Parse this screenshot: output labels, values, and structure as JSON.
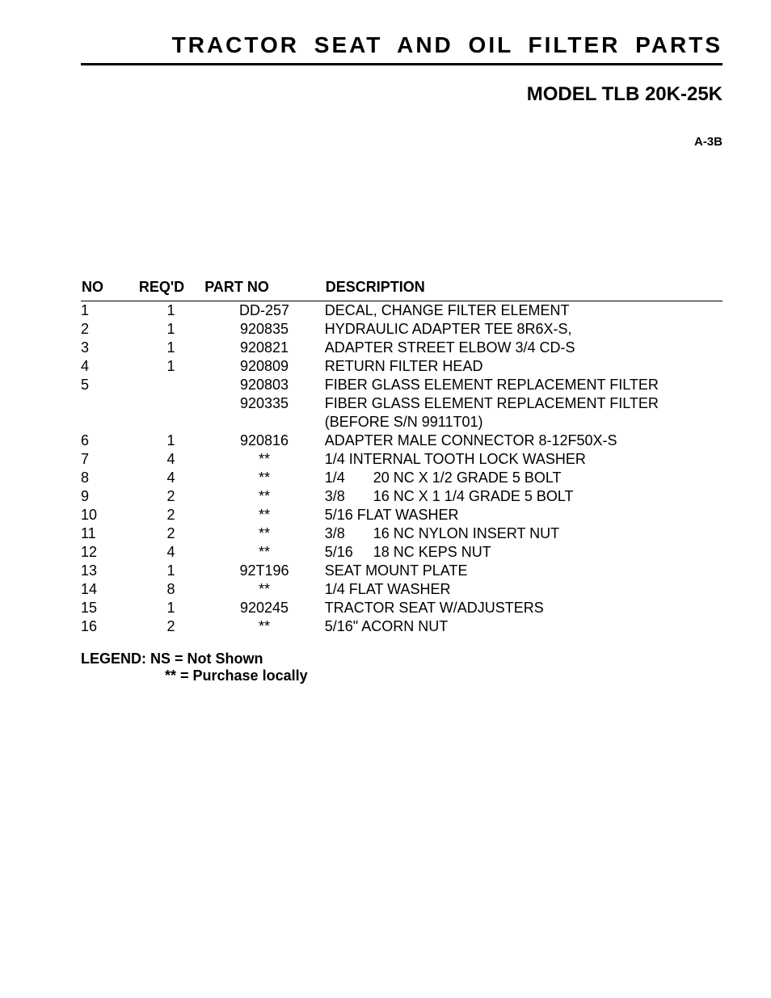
{
  "header": {
    "title": "TRACTOR SEAT AND OIL FILTER PARTS",
    "model": "MODEL TLB 20K-25K",
    "page_code": "A-3B"
  },
  "table": {
    "columns": {
      "no": "NO",
      "reqd": "REQ'D",
      "partno": "PART NO",
      "description": "DESCRIPTION"
    },
    "rows": [
      {
        "no": "1",
        "reqd": "1",
        "part": "DD-257",
        "desc": "DECAL, CHANGE FILTER ELEMENT"
      },
      {
        "no": "2",
        "reqd": "1",
        "part": "920835",
        "desc": "HYDRAULIC ADAPTER TEE 8R6X-S,"
      },
      {
        "no": "3",
        "reqd": "1",
        "part": "920821",
        "desc": "ADAPTER STREET ELBOW 3/4 CD-S"
      },
      {
        "no": "4",
        "reqd": "1",
        "part": "920809",
        "desc": "RETURN FILTER HEAD"
      },
      {
        "no": "5",
        "reqd": "",
        "part": "920803",
        "desc": "FIBER GLASS ELEMENT REPLACEMENT FILTER"
      },
      {
        "no": "",
        "reqd": "",
        "part": "920335",
        "desc": "FIBER GLASS ELEMENT REPLACEMENT FILTER"
      },
      {
        "no": "",
        "reqd": "",
        "part": "",
        "desc": "(BEFORE S/N 9911T01)"
      },
      {
        "no": "6",
        "reqd": "1",
        "part": "920816",
        "desc": "ADAPTER MALE CONNECTOR 8-12F50X-S"
      },
      {
        "no": "7",
        "reqd": "4",
        "part": "**",
        "desc": "1/4 INTERNAL TOOTH LOCK WASHER"
      },
      {
        "no": "8",
        "reqd": "4",
        "part": "**",
        "desc_left": "1/4",
        "desc_right": "20 NC X 1/2 GRADE 5 BOLT"
      },
      {
        "no": "9",
        "reqd": "2",
        "part": "**",
        "desc_left": "3/8",
        "desc_right": "16 NC X 1 1/4 GRADE 5 BOLT"
      },
      {
        "no": "10",
        "reqd": "2",
        "part": "**",
        "desc": "5/16 FLAT WASHER"
      },
      {
        "no": "11",
        "reqd": "2",
        "part": "**",
        "desc_left": "3/8",
        "desc_right": "16 NC NYLON INSERT NUT"
      },
      {
        "no": "12",
        "reqd": "4",
        "part": "**",
        "desc_left": "5/16",
        "desc_right": "18 NC KEPS NUT"
      },
      {
        "no": "13",
        "reqd": "1",
        "part": "92T196",
        "desc": "SEAT MOUNT PLATE"
      },
      {
        "no": "14",
        "reqd": "8",
        "part": "**",
        "desc": "1/4 FLAT WASHER"
      },
      {
        "no": "15",
        "reqd": "1",
        "part": "920245",
        "desc": "TRACTOR SEAT W/ADJUSTERS"
      },
      {
        "no": "16",
        "reqd": "2",
        "part": "**",
        "desc": "5/16\" ACORN NUT"
      }
    ]
  },
  "legend": {
    "line1": "LEGEND: NS = Not Shown",
    "line2": "** = Purchase locally"
  }
}
